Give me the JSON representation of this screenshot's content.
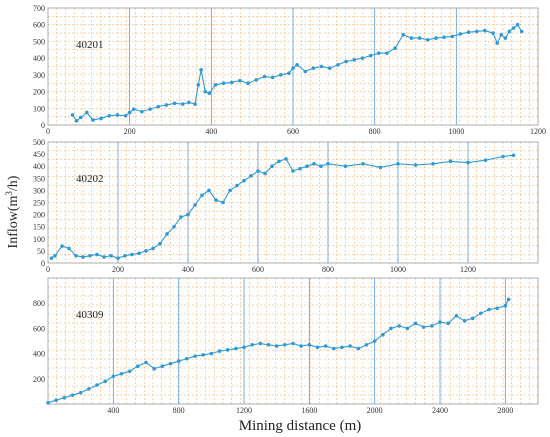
{
  "figure": {
    "ylabel_main": "Inflow(m",
    "ylabel_sup": "3",
    "ylabel_tail": "/h)",
    "xlabel": "Mining distance (m)"
  },
  "style": {
    "series_color": "#2E9BD6",
    "grid_color": "#F2A65A",
    "major_line_color": "#5B9BD5",
    "frame_color": "#999999"
  },
  "chart_data": [
    {
      "type": "line",
      "panel_label": "40201",
      "xlim": [
        0,
        1200
      ],
      "ylim": [
        0,
        700
      ],
      "xticks": [
        0,
        200,
        400,
        600,
        800,
        1000,
        1200
      ],
      "yticks": [
        0,
        100,
        200,
        300,
        400,
        500,
        600,
        700
      ],
      "x": [
        60,
        70,
        80,
        95,
        110,
        130,
        150,
        170,
        190,
        200,
        210,
        230,
        250,
        270,
        290,
        310,
        330,
        345,
        360,
        368,
        375,
        385,
        395,
        410,
        430,
        450,
        470,
        490,
        510,
        530,
        550,
        570,
        590,
        600,
        610,
        630,
        650,
        670,
        690,
        710,
        730,
        750,
        770,
        790,
        810,
        830,
        850,
        870,
        890,
        910,
        930,
        950,
        970,
        990,
        1010,
        1030,
        1050,
        1070,
        1090,
        1100,
        1110,
        1120,
        1130,
        1140,
        1150,
        1160
      ],
      "y": [
        60,
        25,
        45,
        75,
        30,
        40,
        55,
        60,
        55,
        75,
        95,
        80,
        95,
        110,
        120,
        130,
        125,
        135,
        125,
        240,
        330,
        200,
        190,
        240,
        250,
        255,
        265,
        250,
        270,
        290,
        285,
        300,
        310,
        340,
        360,
        320,
        340,
        350,
        340,
        360,
        380,
        390,
        400,
        415,
        430,
        430,
        460,
        540,
        520,
        520,
        510,
        520,
        525,
        530,
        545,
        555,
        560,
        565,
        550,
        490,
        540,
        520,
        560,
        580,
        600,
        560
      ]
    },
    {
      "type": "line",
      "panel_label": "40202",
      "xlim": [
        0,
        1400
      ],
      "ylim": [
        0,
        500
      ],
      "xticks": [
        0,
        200,
        400,
        600,
        800,
        1000,
        1200
      ],
      "yticks": [
        0,
        50,
        100,
        150,
        200,
        250,
        300,
        350,
        400,
        450,
        500
      ],
      "x": [
        10,
        20,
        40,
        60,
        80,
        100,
        120,
        140,
        160,
        180,
        200,
        220,
        240,
        260,
        280,
        300,
        320,
        340,
        360,
        380,
        400,
        420,
        440,
        460,
        480,
        500,
        520,
        540,
        560,
        580,
        600,
        620,
        640,
        660,
        680,
        700,
        720,
        740,
        760,
        780,
        800,
        850,
        900,
        950,
        1000,
        1050,
        1100,
        1150,
        1200,
        1250,
        1300,
        1330
      ],
      "y": [
        20,
        30,
        70,
        60,
        30,
        25,
        30,
        35,
        25,
        30,
        20,
        30,
        35,
        40,
        50,
        60,
        80,
        120,
        150,
        190,
        200,
        240,
        280,
        300,
        260,
        250,
        300,
        320,
        340,
        360,
        380,
        370,
        400,
        420,
        430,
        380,
        390,
        400,
        410,
        400,
        410,
        400,
        410,
        395,
        410,
        405,
        410,
        420,
        415,
        425,
        440,
        445
      ]
    },
    {
      "type": "line",
      "panel_label": "40309",
      "xlim": [
        0,
        3000
      ],
      "ylim": [
        0,
        1000
      ],
      "xticks": [
        400,
        800,
        1200,
        1600,
        2000,
        2400,
        2800
      ],
      "yticks": [
        200,
        400,
        600,
        800
      ],
      "x": [
        0,
        50,
        100,
        150,
        200,
        250,
        300,
        350,
        400,
        450,
        500,
        550,
        600,
        650,
        700,
        750,
        800,
        850,
        900,
        950,
        1000,
        1050,
        1100,
        1150,
        1200,
        1250,
        1300,
        1350,
        1400,
        1450,
        1500,
        1550,
        1600,
        1650,
        1700,
        1750,
        1800,
        1850,
        1900,
        1950,
        2000,
        2050,
        2100,
        2150,
        2200,
        2250,
        2300,
        2350,
        2400,
        2450,
        2500,
        2550,
        2600,
        2650,
        2700,
        2750,
        2800,
        2820
      ],
      "y": [
        10,
        30,
        50,
        70,
        90,
        120,
        150,
        180,
        220,
        240,
        260,
        300,
        330,
        280,
        300,
        320,
        340,
        360,
        380,
        390,
        400,
        420,
        430,
        440,
        450,
        470,
        480,
        470,
        460,
        470,
        480,
        460,
        470,
        450,
        460,
        440,
        450,
        460,
        440,
        470,
        500,
        550,
        600,
        620,
        600,
        640,
        610,
        620,
        650,
        640,
        700,
        660,
        680,
        720,
        750,
        760,
        780,
        830
      ]
    }
  ]
}
